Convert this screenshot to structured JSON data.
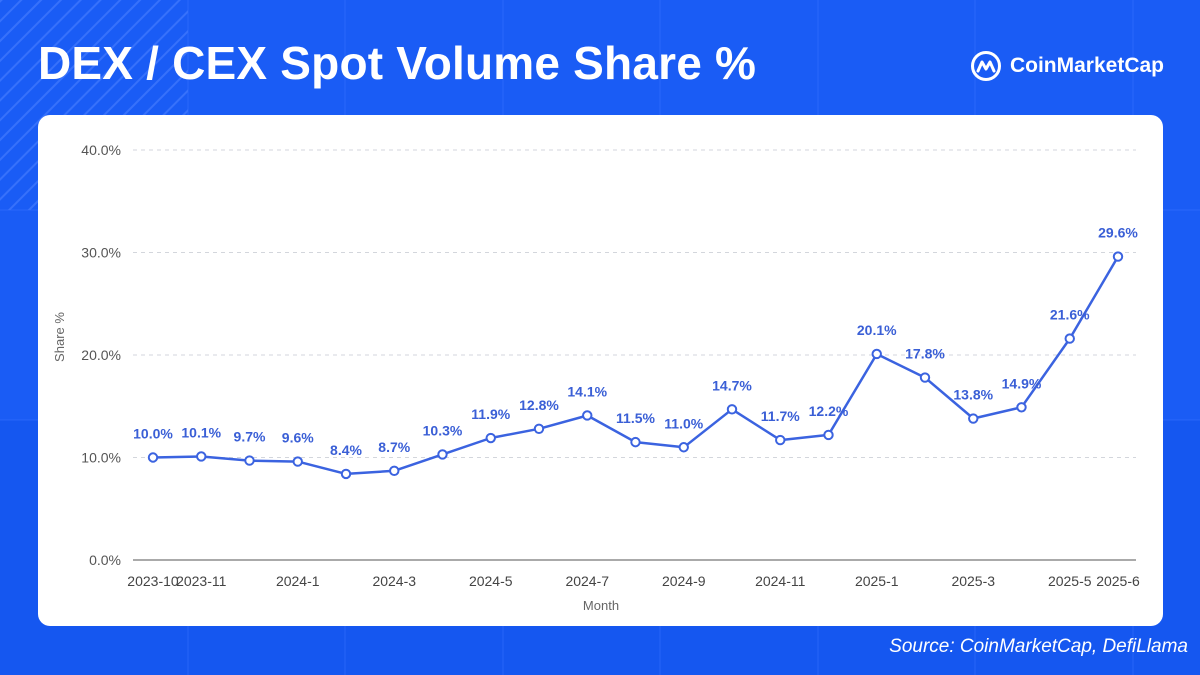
{
  "header": {
    "title": "DEX / CEX Spot Volume Share %",
    "brand_name": "CoinMarketCap",
    "brand_icon": "coinmarketcap-logo-icon"
  },
  "footer": {
    "source": "Source: CoinMarketCap, DefiLlama"
  },
  "colors": {
    "background": "#1a5cf5",
    "line": "#3b63e0",
    "label": "#3a5fd6",
    "grid": "#d3d6dc",
    "axis_text": "#444444"
  },
  "chart_data": {
    "type": "line",
    "title": "DEX / CEX Spot Volume Share %",
    "xlabel": "Month",
    "ylabel": "Share %",
    "ylim": [
      0,
      40
    ],
    "yticks": [
      "0.0%",
      "10.0%",
      "20.0%",
      "30.0%",
      "40.0%"
    ],
    "grid": true,
    "x": [
      "2023-10",
      "2023-11",
      "2023-12",
      "2024-1",
      "2024-2",
      "2024-3",
      "2024-4",
      "2024-5",
      "2024-6",
      "2024-7",
      "2024-8",
      "2024-9",
      "2024-10",
      "2024-11",
      "2024-12",
      "2025-1",
      "2025-2",
      "2025-3",
      "2025-4",
      "2025-5",
      "2025-6"
    ],
    "x_tick_labels": [
      "2023-10",
      "2023-11",
      "2024-1",
      "2024-3",
      "2024-5",
      "2024-7",
      "2024-9",
      "2024-11",
      "2025-1",
      "2025-3",
      "2025-5",
      "2025-6"
    ],
    "series": [
      {
        "values": [
          10.0,
          10.1,
          9.7,
          9.6,
          8.4,
          8.7,
          10.3,
          11.9,
          12.8,
          14.1,
          11.5,
          11.0,
          14.7,
          11.7,
          12.2,
          20.1,
          17.8,
          13.8,
          14.9,
          21.6,
          29.6
        ],
        "labels": [
          "10.0%",
          "10.1%",
          "9.7%",
          "9.6%",
          "8.4%",
          "8.7%",
          "10.3%",
          "11.9%",
          "12.8%",
          "14.1%",
          "11.5%",
          "11.0%",
          "14.7%",
          "11.7%",
          "12.2%",
          "20.1%",
          "17.8%",
          "13.8%",
          "14.9%",
          "21.6%",
          "29.6%"
        ]
      }
    ]
  }
}
